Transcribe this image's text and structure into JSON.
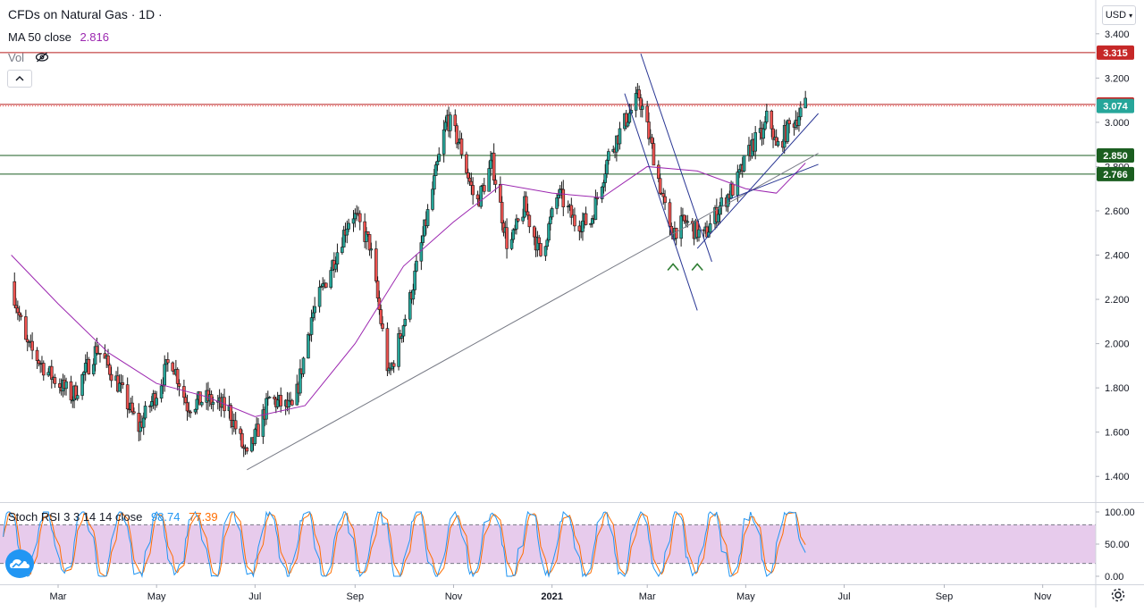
{
  "header": {
    "title": "CFDs on Natural Gas · 1D ·",
    "ma_label": "MA 50 close",
    "ma_value": "2.816",
    "vol_label": "Vol",
    "currency": "USD"
  },
  "colors": {
    "up": "#26a69a",
    "down": "#ef5350",
    "candle_outline": "#1a1a1a",
    "ma": "#9c27b0",
    "resistance": "#b71c1c",
    "support": "#1b5e20",
    "trend_blue": "#283593",
    "trend_gray": "#787b86",
    "stoch_k": "#2196f3",
    "stoch_d": "#ff6d00",
    "stoch_band": "#e1bee7"
  },
  "chart_data": [
    {
      "type": "candlestick",
      "title": "CFDs on Natural Gas",
      "interval": "1D",
      "y_range": [
        1.3,
        3.48
      ],
      "y_ticks": [
        "3.400",
        "3.200",
        "3.000",
        "2.800",
        "2.600",
        "2.400",
        "2.200",
        "2.000",
        "1.800",
        "1.600",
        "1.400"
      ],
      "x_ticks": [
        "Mar",
        "May",
        "Jul",
        "Sep",
        "Nov",
        "2021",
        "Mar",
        "May",
        "Jul",
        "Sep",
        "Nov"
      ],
      "price_labels": [
        {
          "value": 3.315,
          "text": "3.315",
          "kind": "resistance"
        },
        {
          "value": 3.081,
          "text": "3.081",
          "kind": "resistance"
        },
        {
          "value": 3.074,
          "text": "3.074",
          "kind": "last"
        },
        {
          "value": 2.85,
          "text": "2.850",
          "kind": "support"
        },
        {
          "value": 2.766,
          "text": "2.766",
          "kind": "support"
        }
      ],
      "close_path": [
        [
          "2020-02-01",
          2.28
        ],
        [
          "2020-02-10",
          2.0
        ],
        [
          "2020-02-25",
          1.86
        ],
        [
          "2020-03-10",
          1.76
        ],
        [
          "2020-03-25",
          1.98
        ],
        [
          "2020-04-05",
          1.85
        ],
        [
          "2020-04-20",
          1.62
        ],
        [
          "2020-05-01",
          1.78
        ],
        [
          "2020-05-10",
          1.94
        ],
        [
          "2020-05-20",
          1.72
        ],
        [
          "2020-06-01",
          1.75
        ],
        [
          "2020-06-15",
          1.7
        ],
        [
          "2020-06-26",
          1.48
        ],
        [
          "2020-07-10",
          1.75
        ],
        [
          "2020-07-25",
          1.7
        ],
        [
          "2020-08-05",
          2.12
        ],
        [
          "2020-08-20",
          2.4
        ],
        [
          "2020-08-30",
          2.6
        ],
        [
          "2020-09-10",
          2.45
        ],
        [
          "2020-09-22",
          1.85
        ],
        [
          "2020-10-05",
          2.2
        ],
        [
          "2020-10-15",
          2.55
        ],
        [
          "2020-10-28",
          3.02
        ],
        [
          "2020-11-05",
          2.9
        ],
        [
          "2020-11-15",
          2.62
        ],
        [
          "2020-11-25",
          2.82
        ],
        [
          "2020-12-05",
          2.42
        ],
        [
          "2020-12-15",
          2.62
        ],
        [
          "2020-12-25",
          2.4
        ],
        [
          "2021-01-05",
          2.68
        ],
        [
          "2021-01-15",
          2.55
        ],
        [
          "2021-01-25",
          2.55
        ],
        [
          "2021-02-05",
          2.85
        ],
        [
          "2021-02-15",
          3.0
        ],
        [
          "2021-02-24",
          3.12
        ],
        [
          "2021-03-05",
          2.85
        ],
        [
          "2021-03-15",
          2.5
        ],
        [
          "2021-03-25",
          2.55
        ],
        [
          "2021-04-05",
          2.48
        ],
        [
          "2021-04-15",
          2.62
        ],
        [
          "2021-04-25",
          2.72
        ],
        [
          "2021-05-05",
          2.9
        ],
        [
          "2021-05-12",
          2.95
        ],
        [
          "2021-05-15",
          3.05
        ],
        [
          "2021-05-20",
          2.88
        ],
        [
          "2021-05-28",
          2.98
        ],
        [
          "2021-06-07",
          3.074
        ]
      ],
      "ma50": {
        "name": "MA 50 close",
        "value": 2.816,
        "path": [
          [
            "2020-02-01",
            2.4
          ],
          [
            "2020-03-01",
            2.18
          ],
          [
            "2020-04-01",
            1.96
          ],
          [
            "2020-05-01",
            1.82
          ],
          [
            "2020-06-01",
            1.76
          ],
          [
            "2020-07-01",
            1.67
          ],
          [
            "2020-08-01",
            1.72
          ],
          [
            "2020-09-01",
            2.0
          ],
          [
            "2020-10-01",
            2.35
          ],
          [
            "2020-11-01",
            2.55
          ],
          [
            "2020-12-01",
            2.72
          ],
          [
            "2021-01-01",
            2.68
          ],
          [
            "2021-02-01",
            2.66
          ],
          [
            "2021-03-01",
            2.8
          ],
          [
            "2021-04-01",
            2.78
          ],
          [
            "2021-05-01",
            2.7
          ],
          [
            "2021-05-20",
            2.68
          ],
          [
            "2021-06-07",
            2.816
          ]
        ]
      },
      "drawings": {
        "horizontal_lines": [
          3.315,
          3.081,
          2.85,
          2.766
        ],
        "trendlines": [
          {
            "kind": "gray",
            "from": [
              "2020-06-26",
              1.43
            ],
            "to": [
              "2021-06-15",
              2.86
            ]
          },
          {
            "kind": "blue",
            "from": [
              "2021-02-25",
              3.31
            ],
            "to": [
              "2021-04-10",
              2.37
            ]
          },
          {
            "kind": "blue",
            "from": [
              "2021-02-15",
              3.13
            ],
            "to": [
              "2021-04-01",
              2.15
            ]
          },
          {
            "kind": "blue",
            "from": [
              "2021-04-01",
              2.43
            ],
            "to": [
              "2021-06-15",
              3.04
            ]
          },
          {
            "kind": "blue",
            "from": [
              "2021-04-20",
              2.65
            ],
            "to": [
              "2021-06-15",
              2.81
            ]
          }
        ],
        "markers": [
          {
            "date": "2021-03-17",
            "value": 2.38,
            "symbol": "^"
          },
          {
            "date": "2021-04-01",
            "value": 2.38,
            "symbol": "^"
          }
        ]
      }
    },
    {
      "type": "line",
      "title": "Stoch RSI 3 3 14 14 close",
      "series": [
        {
          "name": "K",
          "last": "98.74"
        },
        {
          "name": "D",
          "last": "77.39"
        }
      ],
      "y_range": [
        0,
        100
      ],
      "y_ticks": [
        "100.00",
        "50.00",
        "0.00"
      ],
      "bands": [
        20,
        80
      ]
    }
  ],
  "stoch": {
    "label": "Stoch RSI 3 3 14 14 close",
    "k": "98.74",
    "d": "77.39"
  }
}
